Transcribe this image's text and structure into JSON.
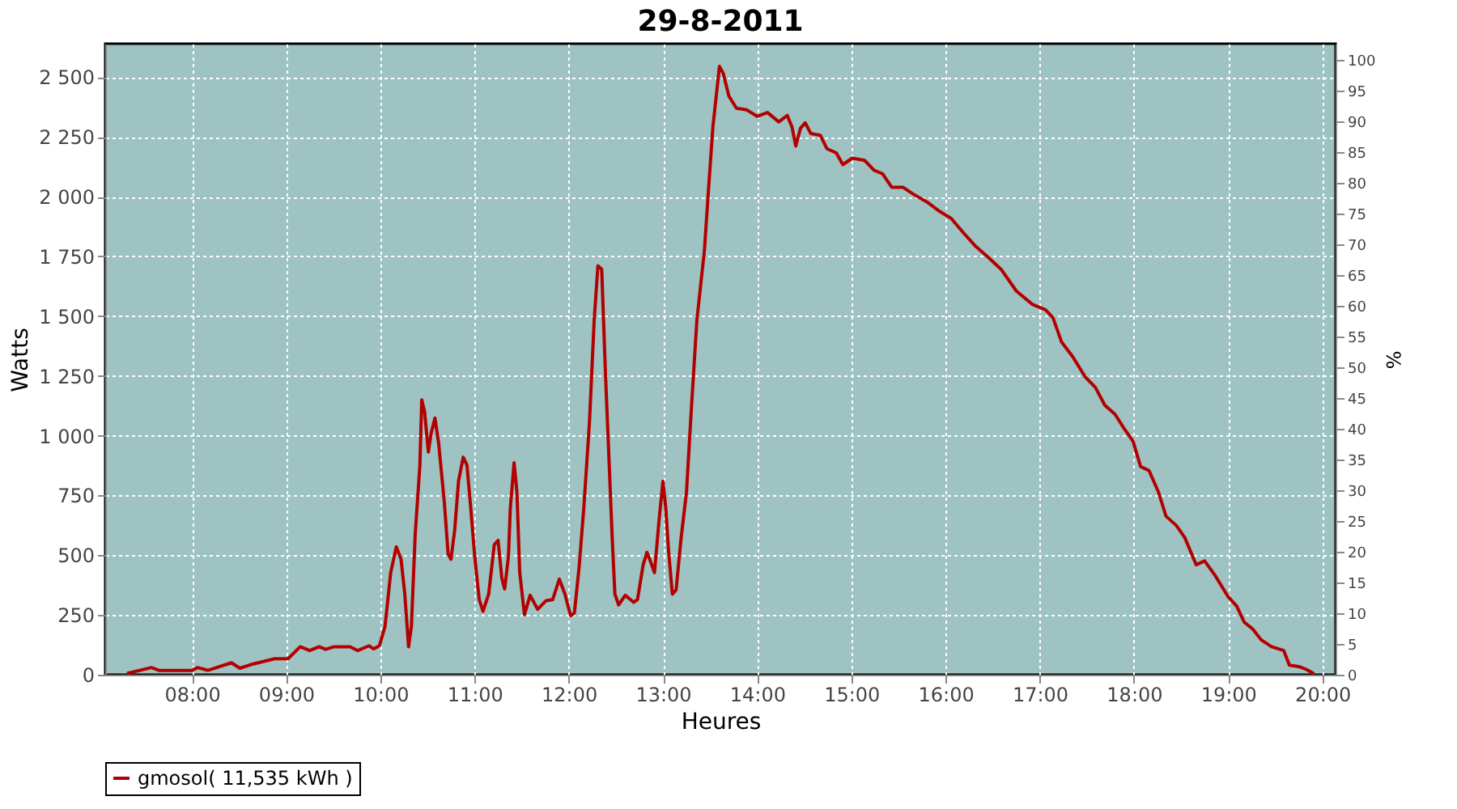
{
  "chart_data": {
    "type": "line",
    "title": "29-8-2011",
    "xlabel": "Heures",
    "ylabel": "Watts",
    "y2label": "%",
    "xlim": [
      7.08,
      20.14
    ],
    "xticks": [
      {
        "value": 8,
        "label": "08:00"
      },
      {
        "value": 9,
        "label": "09:00"
      },
      {
        "value": 10,
        "label": "10:00"
      },
      {
        "value": 11,
        "label": "11:00"
      },
      {
        "value": 12,
        "label": "12:00"
      },
      {
        "value": 13,
        "label": "13:00"
      },
      {
        "value": 14,
        "label": "14:00"
      },
      {
        "value": 15,
        "label": "15:00"
      },
      {
        "value": 16,
        "label": "16:00"
      },
      {
        "value": 17,
        "label": "17:00"
      },
      {
        "value": 18,
        "label": "18:00"
      },
      {
        "value": 19,
        "label": "19:00"
      },
      {
        "value": 20,
        "label": "20:00"
      }
    ],
    "ylim": [
      0,
      2640
    ],
    "yticks": [
      0,
      250,
      500,
      750,
      {
        "value": 1000,
        "label": "1 000"
      },
      {
        "value": 1250,
        "label": "1 250"
      },
      {
        "value": 1500,
        "label": "1 500"
      },
      {
        "value": 1750,
        "label": "1 750"
      },
      {
        "value": 2000,
        "label": "2 000"
      },
      {
        "value": 2250,
        "label": "2 250"
      },
      {
        "value": 2500,
        "label": "2 500"
      }
    ],
    "y2lim": [
      0,
      102.6
    ],
    "y2ticks": [
      0,
      5,
      10,
      15,
      20,
      25,
      30,
      35,
      40,
      45,
      50,
      55,
      60,
      65,
      70,
      75,
      80,
      85,
      90,
      95,
      100
    ],
    "grid": true,
    "legend": "bottom",
    "marker": "none",
    "line_style": "solid",
    "series": [
      {
        "name": "gmosol( 11,535 kWh )",
        "color": "#b30000",
        "x": [
          7.31,
          7.57,
          7.65,
          8.0,
          8.06,
          8.17,
          8.42,
          8.51,
          8.65,
          8.88,
          9.02,
          9.15,
          9.25,
          9.35,
          9.42,
          9.51,
          9.68,
          9.76,
          9.88,
          9.93,
          9.99,
          10.05,
          10.11,
          10.17,
          10.22,
          10.26,
          10.3,
          10.33,
          10.37,
          10.42,
          10.44,
          10.47,
          10.51,
          10.54,
          10.58,
          10.62,
          10.68,
          10.72,
          10.75,
          10.79,
          10.83,
          10.88,
          10.92,
          10.96,
          11.0,
          11.05,
          11.09,
          11.15,
          11.21,
          11.25,
          11.29,
          11.32,
          11.36,
          11.38,
          11.42,
          11.45,
          11.48,
          11.53,
          11.59,
          11.67,
          11.76,
          11.83,
          11.9,
          11.96,
          12.02,
          12.06,
          12.11,
          12.16,
          12.22,
          12.27,
          12.31,
          12.35,
          12.39,
          12.43,
          12.46,
          12.49,
          12.53,
          12.6,
          12.69,
          12.73,
          12.79,
          12.83,
          12.87,
          12.91,
          12.96,
          13.0,
          13.03,
          13.06,
          13.1,
          13.14,
          13.19,
          13.25,
          13.3,
          13.36,
          13.44,
          13.49,
          13.53,
          13.6,
          13.64,
          13.7,
          13.78,
          13.89,
          14.0,
          14.11,
          14.23,
          14.32,
          14.37,
          14.41,
          14.46,
          14.51,
          14.57,
          14.67,
          14.74,
          14.84,
          14.91,
          15.01,
          15.14,
          15.24,
          15.33,
          15.43,
          15.55,
          15.66,
          15.81,
          15.92,
          16.06,
          16.18,
          16.32,
          16.45,
          16.59,
          16.75,
          16.92,
          17.06,
          17.14,
          17.23,
          17.35,
          17.48,
          17.59,
          17.69,
          17.8,
          17.89,
          17.99,
          18.07,
          18.16,
          18.26,
          18.34,
          18.45,
          18.54,
          18.66,
          18.75,
          18.86,
          19.0,
          19.09,
          19.17,
          19.26,
          19.35,
          19.46,
          19.59,
          19.65,
          19.75,
          19.83,
          19.91
        ],
        "values": [
          5,
          30,
          18,
          18,
          30,
          18,
          50,
          27,
          45,
          67,
          67,
          117,
          101,
          117,
          106,
          117,
          117,
          101,
          121,
          108,
          121,
          202,
          427,
          535,
          483,
          337,
          117,
          202,
          584,
          876,
          1150,
          1100,
          932,
          1011,
          1074,
          966,
          719,
          505,
          483,
          607,
          809,
          910,
          876,
          697,
          505,
          314,
          265,
          337,
          544,
          562,
          404,
          359,
          494,
          697,
          887,
          764,
          427,
          251,
          332,
          274,
          310,
          314,
          400,
          337,
          247,
          258,
          449,
          697,
          1056,
          1482,
          1711,
          1696,
          1258,
          876,
          584,
          337,
          292,
          332,
          303,
          314,
          460,
          512,
          472,
          427,
          651,
          809,
          697,
          517,
          337,
          355,
          562,
          764,
          1101,
          1482,
          1774,
          2066,
          2291,
          2545,
          2516,
          2421,
          2370,
          2363,
          2336,
          2352,
          2313,
          2340,
          2291,
          2212,
          2286,
          2309,
          2264,
          2257,
          2201,
          2183,
          2134,
          2161,
          2152,
          2111,
          2096,
          2039,
          2039,
          2010,
          1976,
          1943,
          1909,
          1853,
          1792,
          1747,
          1696,
          1606,
          1550,
          1527,
          1494,
          1393,
          1330,
          1247,
          1202,
          1128,
          1089,
          1033,
          977,
          871,
          854,
          764,
          663,
          624,
          573,
          460,
          476,
          416,
          326,
          287,
          220,
          191,
          146,
          117,
          101,
          40,
          34,
          22,
          4
        ]
      }
    ]
  }
}
